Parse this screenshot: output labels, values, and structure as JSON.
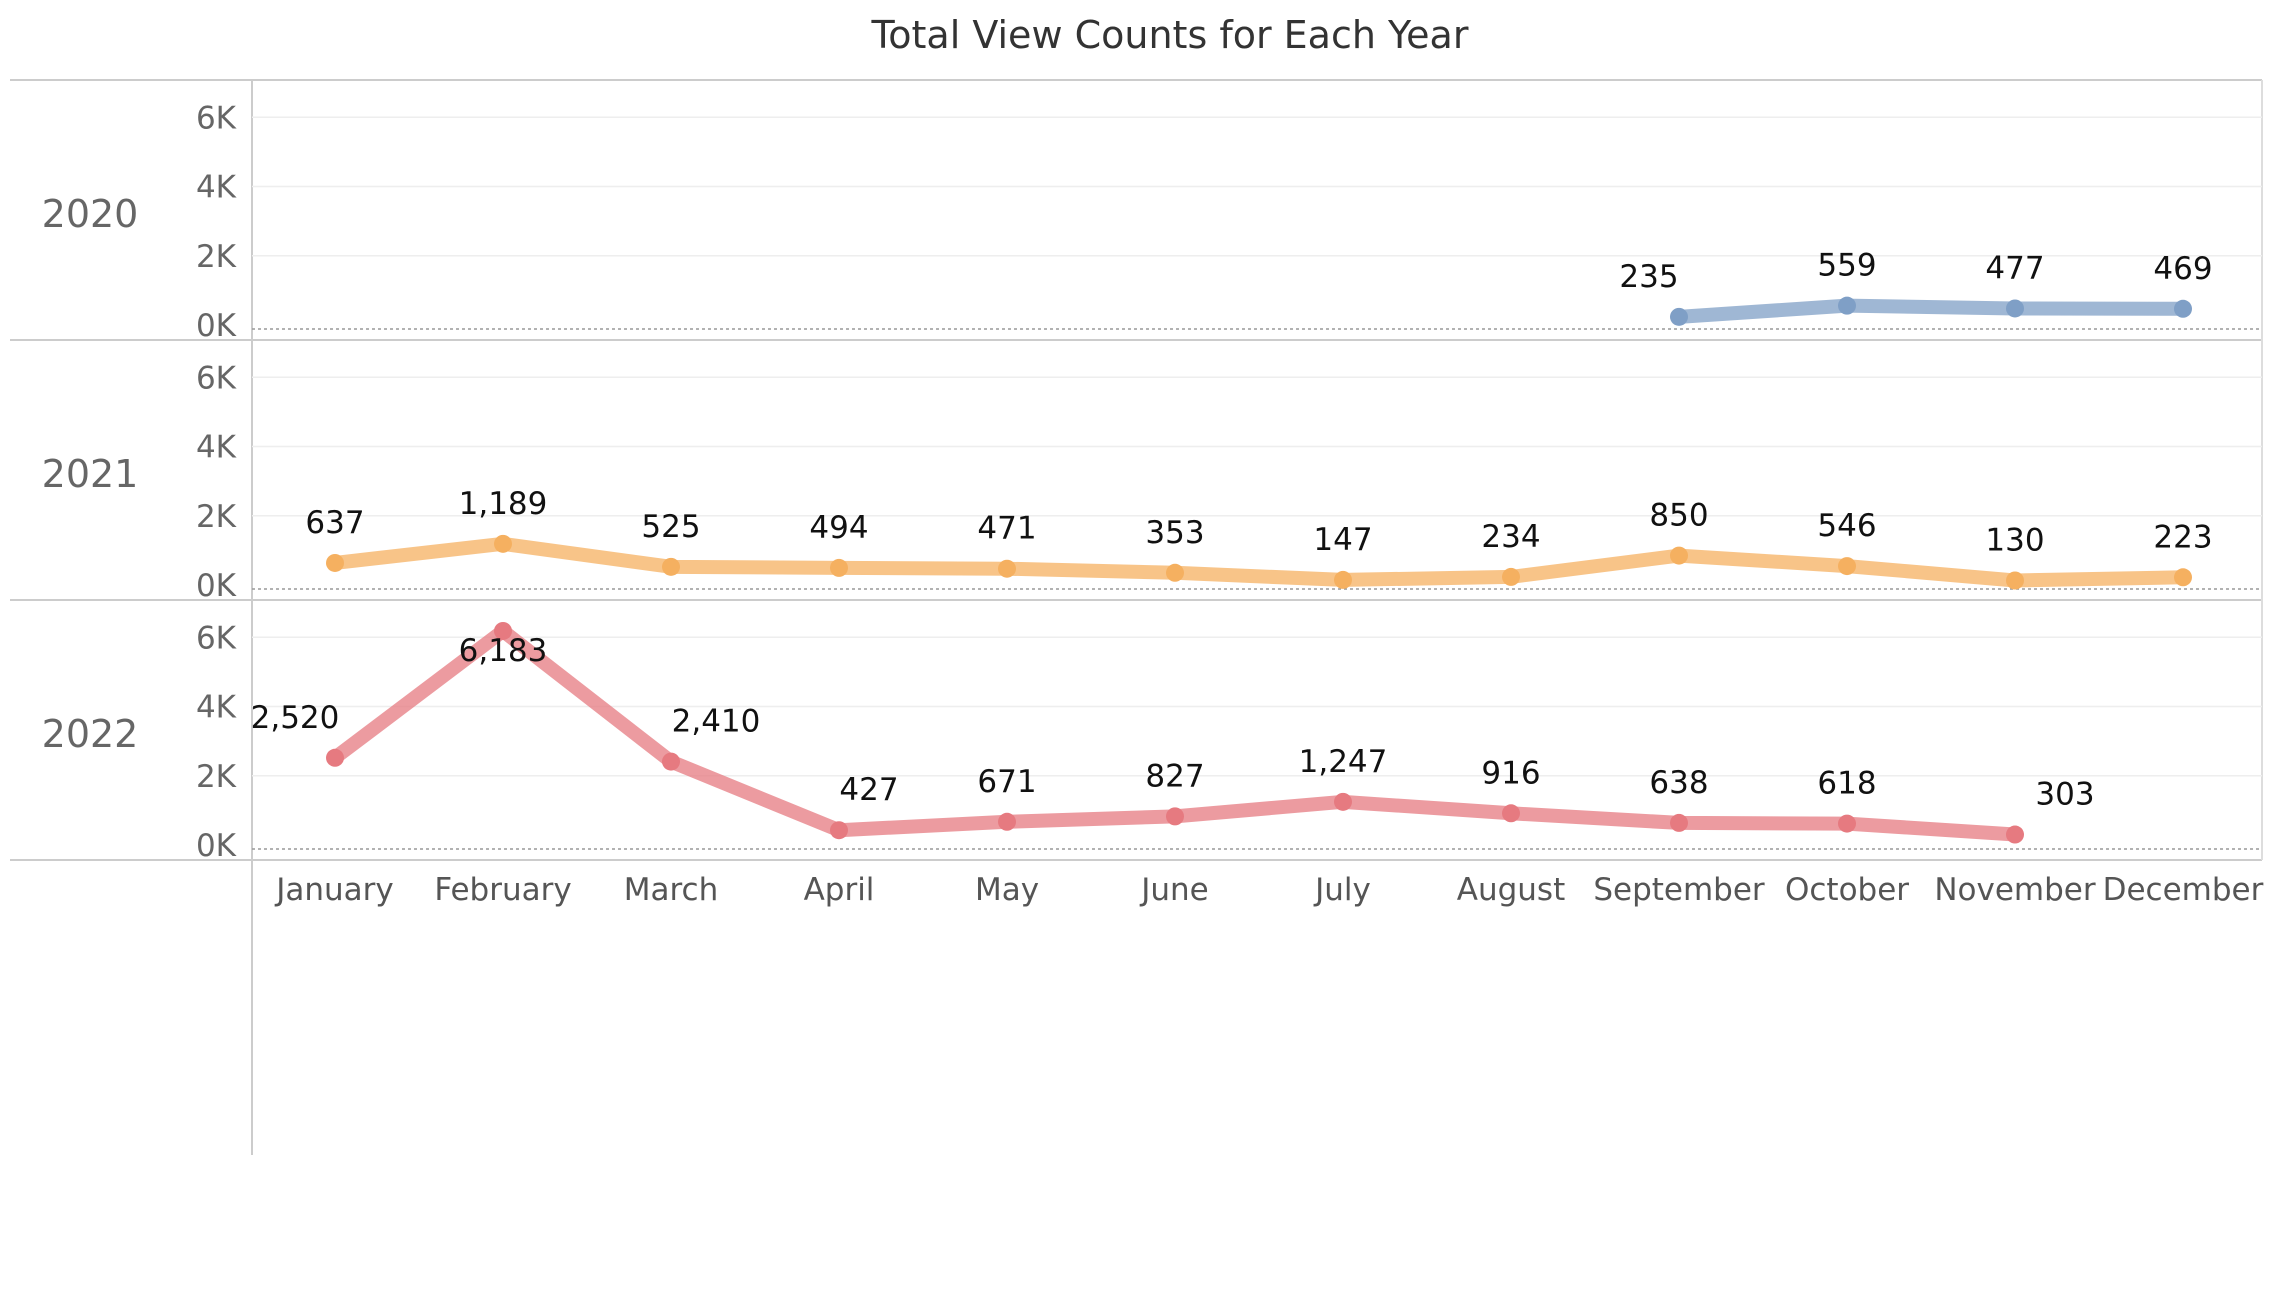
{
  "chart_data": {
    "type": "line",
    "title": "Total View Counts for Each Year",
    "xlabel": "",
    "ylabel": "",
    "categories": [
      "January",
      "February",
      "March",
      "April",
      "May",
      "June",
      "July",
      "August",
      "September",
      "October",
      "November",
      "December"
    ],
    "ylim": [
      0,
      6500
    ],
    "yticks": [
      0,
      2000,
      4000,
      6000
    ],
    "ytick_labels": [
      "0K",
      "2K",
      "4K",
      "6K"
    ],
    "grid": true,
    "legend": "none",
    "layout": "small-multiples-rows",
    "series": [
      {
        "name": "2020",
        "color": "#7f9fc6",
        "values": [
          null,
          null,
          null,
          null,
          null,
          null,
          null,
          null,
          235,
          559,
          477,
          469
        ],
        "labels": [
          null,
          null,
          null,
          null,
          null,
          null,
          null,
          null,
          "235",
          "559",
          "477",
          "469"
        ]
      },
      {
        "name": "2021",
        "color": "#f5b060",
        "values": [
          637,
          1189,
          525,
          494,
          471,
          353,
          147,
          234,
          850,
          546,
          130,
          223
        ],
        "labels": [
          "637",
          "1,189",
          "525",
          "494",
          "471",
          "353",
          "147",
          "234",
          "850",
          "546",
          "130",
          "223"
        ]
      },
      {
        "name": "2022",
        "color": "#e67a80",
        "values": [
          2520,
          6183,
          2410,
          427,
          671,
          827,
          1247,
          916,
          638,
          618,
          303,
          null
        ],
        "labels": [
          "2,520",
          "6,183",
          "2,410",
          "427",
          "671",
          "827",
          "1,247",
          "916",
          "638",
          "618",
          "303",
          null
        ]
      }
    ]
  }
}
